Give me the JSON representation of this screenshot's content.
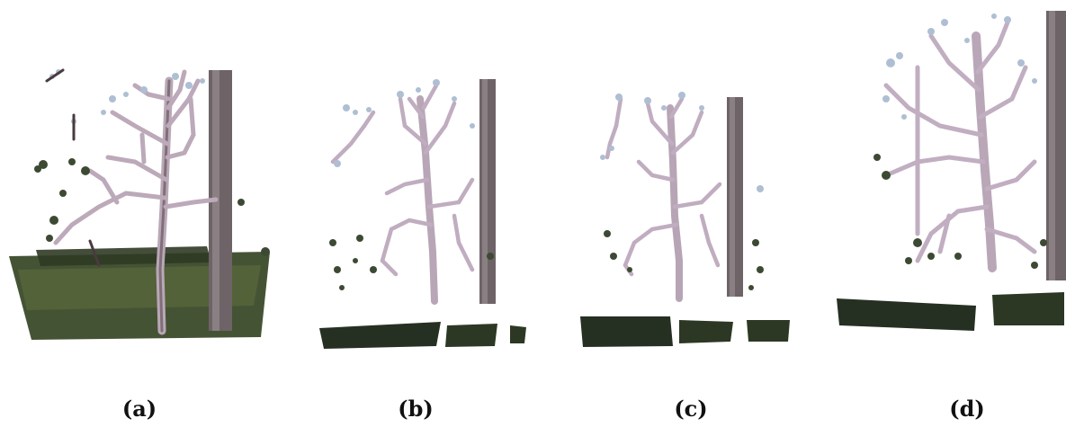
{
  "figure": {
    "panels": [
      {
        "label": "(a)",
        "description_icon": "tree-point-cloud-icon"
      },
      {
        "label": "(b)",
        "description_icon": "tree-point-cloud-icon"
      },
      {
        "label": "(c)",
        "description_icon": "tree-point-cloud-icon"
      },
      {
        "label": "(d)",
        "description_icon": "tree-point-cloud-icon"
      }
    ]
  },
  "colors": {
    "branch_light": "#c9b8c8",
    "branch_dark": "#4a3b3f",
    "bud": "#b7c6d8",
    "post": "#6e6366",
    "ground": "#2f3a24",
    "ground_light": "#5b6a3a"
  }
}
